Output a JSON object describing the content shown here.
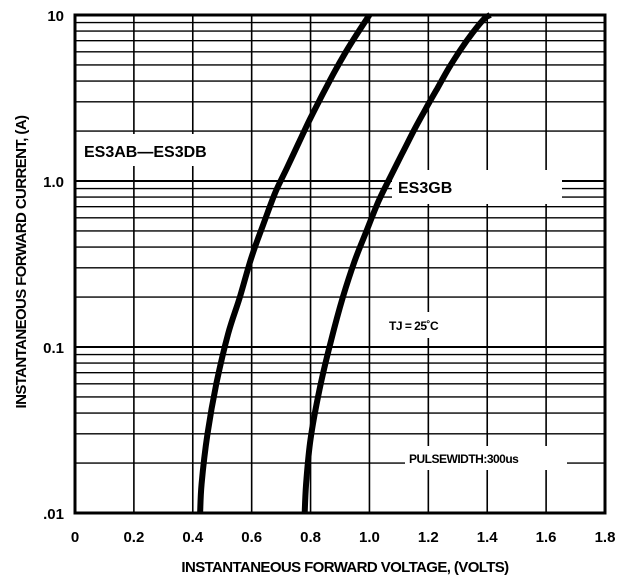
{
  "chart_data": {
    "type": "line",
    "xlabel": "INSTANTANEOUS FORWARD VOLTAGE, (VOLTS)",
    "ylabel": "INSTANTANEOUS FORWARD CURRENT, (A)",
    "xlim": [
      0,
      1.8
    ],
    "ylim": [
      0.01,
      10
    ],
    "y_scale": "log",
    "grid": true,
    "x_ticks": [
      "0",
      "0.2",
      "0.4",
      "0.6",
      "0.8",
      "1.0",
      "1.2",
      "1.4",
      "1.6",
      "1.8"
    ],
    "y_ticks": [
      {
        "value": 10,
        "label": "10"
      },
      {
        "value": 1,
        "label": "1.0"
      },
      {
        "value": 0.1,
        "label": "0.1"
      },
      {
        "value": 0.01,
        "label": ".01"
      }
    ],
    "series": [
      {
        "name": "ES3AB—ES3DB",
        "x": [
          0.425,
          0.43,
          0.45,
          0.48,
          0.52,
          0.56,
          0.6,
          0.64,
          0.68,
          0.72,
          0.76,
          0.8,
          0.84,
          0.88,
          0.92,
          0.96,
          1.0
        ],
        "y": [
          0.01,
          0.015,
          0.03,
          0.06,
          0.12,
          0.2,
          0.35,
          0.55,
          0.85,
          1.2,
          1.7,
          2.4,
          3.3,
          4.5,
          6.0,
          7.8,
          10.0
        ]
      },
      {
        "name": "ES3GB",
        "x": [
          0.78,
          0.785,
          0.8,
          0.83,
          0.87,
          0.91,
          0.95,
          0.99,
          1.03,
          1.07,
          1.11,
          1.15,
          1.19,
          1.23,
          1.27,
          1.31,
          1.35,
          1.39,
          1.41
        ],
        "y": [
          0.01,
          0.015,
          0.028,
          0.055,
          0.11,
          0.2,
          0.33,
          0.5,
          0.75,
          1.05,
          1.45,
          2.0,
          2.7,
          3.6,
          4.8,
          6.2,
          7.8,
          9.5,
          10.0
        ]
      }
    ],
    "annotations": {
      "tj": "TJ = 25˚C",
      "pulse": "PULSEWIDTH:300us"
    }
  },
  "colors": {
    "line": "#000000",
    "grid": "#000000",
    "background": "#ffffff"
  }
}
